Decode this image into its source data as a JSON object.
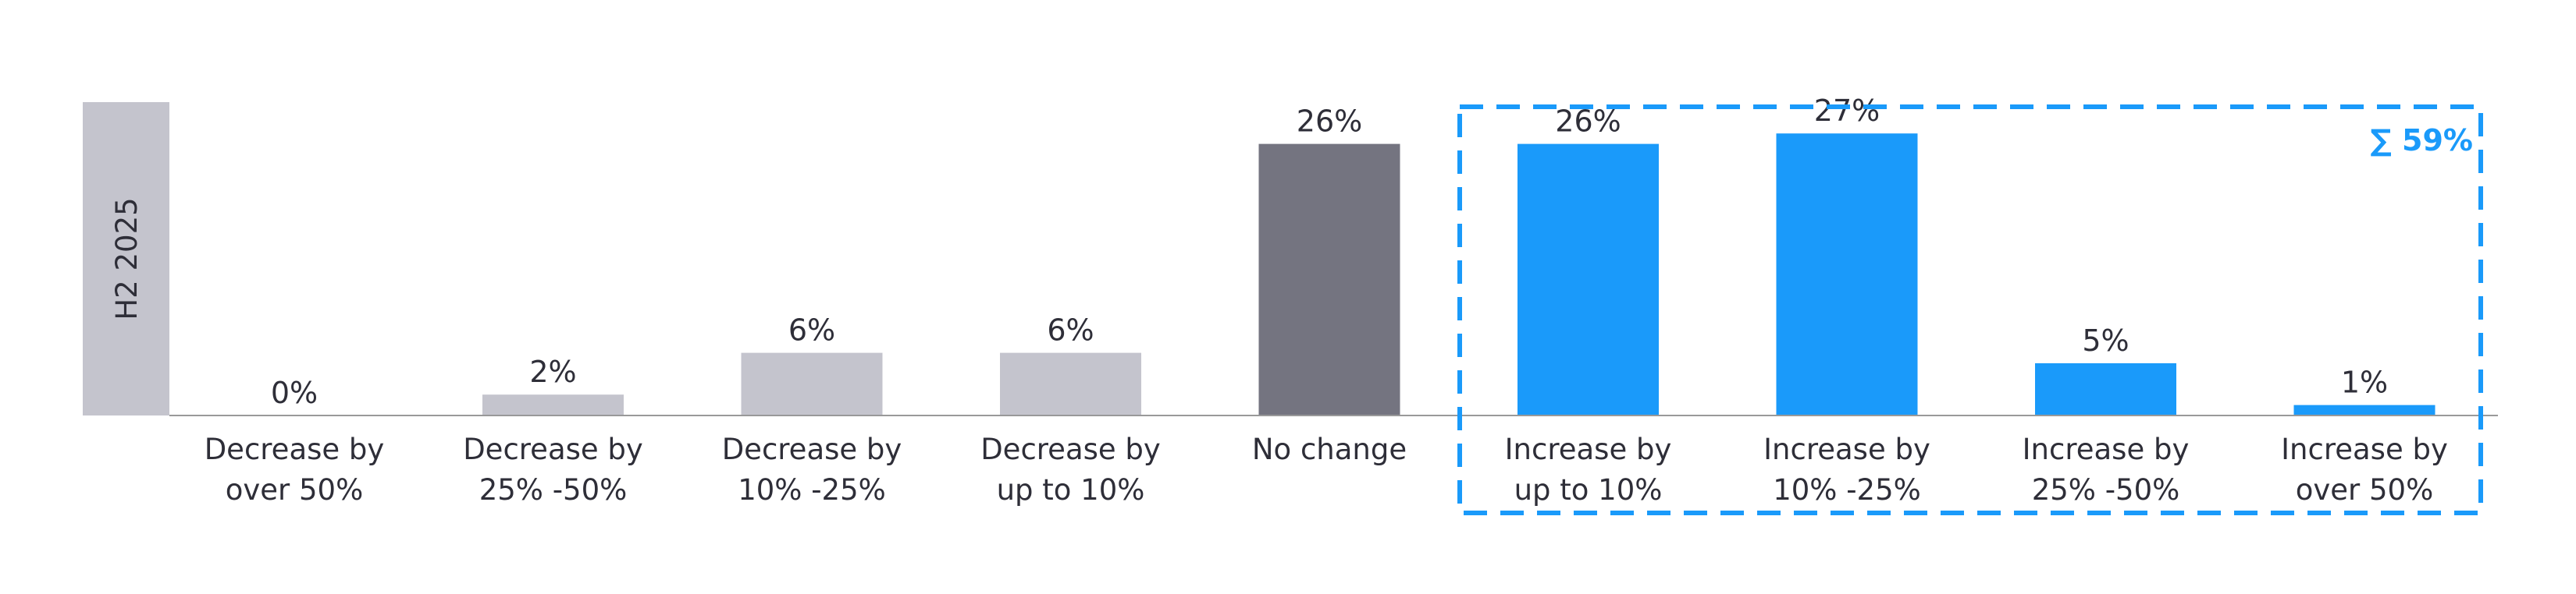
{
  "chart_data": {
    "type": "bar",
    "title": "",
    "xlabel": "",
    "ylabel": "",
    "series_label": "H2 2025",
    "ylim": [
      0,
      30
    ],
    "categories": [
      [
        "Decrease by",
        "over 50%"
      ],
      [
        "Decrease by",
        "25% -50%"
      ],
      [
        "Decrease by",
        "10% -25%"
      ],
      [
        "Decrease by",
        "up to 10%"
      ],
      [
        "No change"
      ],
      [
        "Increase by",
        "up to 10%"
      ],
      [
        "Increase by",
        "10% -25%"
      ],
      [
        "Increase by",
        "25% -50%"
      ],
      [
        "Increase by",
        "over 50%"
      ]
    ],
    "values": [
      0,
      2,
      6,
      6,
      26,
      26,
      27,
      5,
      1
    ],
    "value_labels": [
      "0%",
      "2%",
      "6%",
      "6%",
      "26%",
      "26%",
      "27%",
      "5%",
      "1%"
    ],
    "bar_colors": [
      "#c4c4cd",
      "#c4c4cd",
      "#c4c4cd",
      "#c4c4cd",
      "#747480",
      "#1a9afa",
      "#1a9afa",
      "#1a9afa",
      "#1a9afa"
    ],
    "highlight": {
      "label": "∑ 59%",
      "categories_from": 5,
      "categories_to": 8,
      "color": "#1a9afa"
    },
    "grid": false,
    "legend": "none"
  },
  "colors": {
    "text": "#2e2e38",
    "axis": "#999999",
    "side_panel": "#c4c4cd",
    "accent": "#1a9afa"
  }
}
